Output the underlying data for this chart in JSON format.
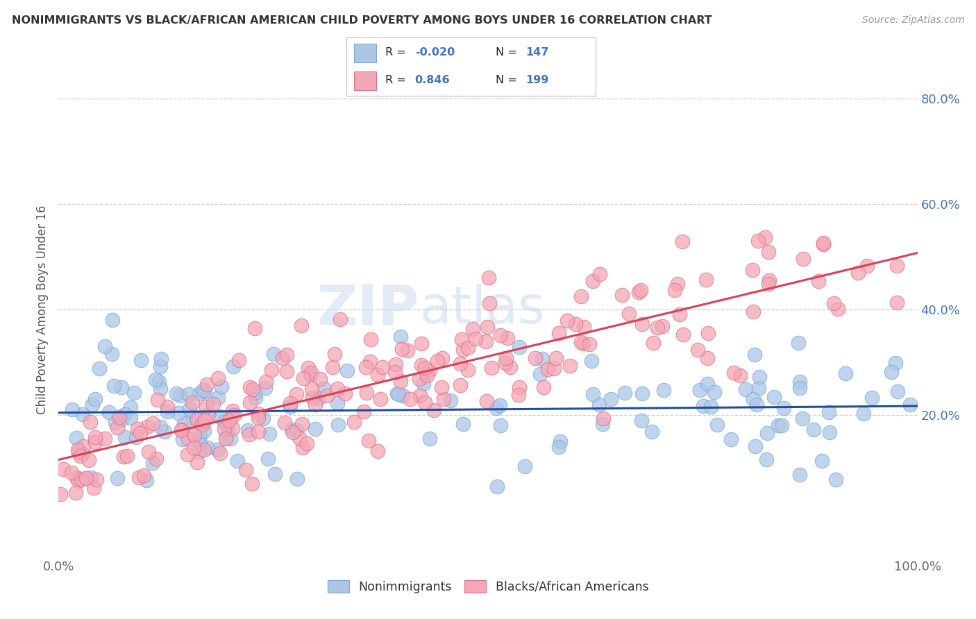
{
  "title": "NONIMMIGRANTS VS BLACK/AFRICAN AMERICAN CHILD POVERTY AMONG BOYS UNDER 16 CORRELATION CHART",
  "source": "Source: ZipAtlas.com",
  "ylabel": "Child Poverty Among Boys Under 16",
  "xlim": [
    0.0,
    1.0
  ],
  "ylim": [
    -0.07,
    0.87
  ],
  "xticks": [
    0.0,
    0.2,
    0.4,
    0.6,
    0.8,
    1.0
  ],
  "xtick_labels": [
    "0.0%",
    "",
    "",
    "",
    "",
    "100.0%"
  ],
  "yticks": [
    0.2,
    0.4,
    0.6,
    0.8
  ],
  "ytick_labels": [
    "20.0%",
    "40.0%",
    "60.0%",
    "80.0%"
  ],
  "legend_labels": [
    "Nonimmigrants",
    "Blacks/African Americans"
  ],
  "r1": -0.02,
  "n1": 147,
  "r2": 0.846,
  "n2": 199,
  "blue_color": "#adc6e8",
  "pink_color": "#f4a7b5",
  "blue_edge_color": "#7baad0",
  "pink_edge_color": "#e07090",
  "blue_line_color": "#1f4e9e",
  "pink_line_color": "#d94055",
  "title_color": "#333333",
  "axis_color": "#4472c4",
  "grid_color": "#cccccc",
  "watermark_zip": "ZIP",
  "watermark_atlas": "atlas",
  "background_color": "#ffffff",
  "legend_box_color": "#e8eef8",
  "legend_border_color": "#aaaacc",
  "seed": 42
}
